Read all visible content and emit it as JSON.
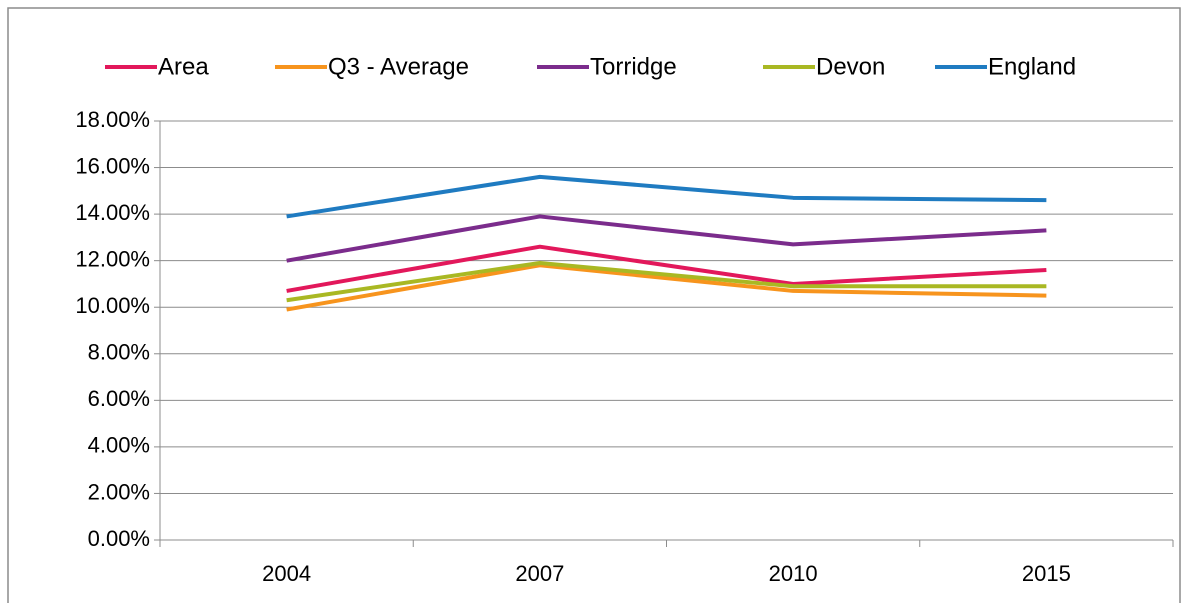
{
  "chart_data": {
    "type": "line",
    "categories": [
      "2004",
      "2007",
      "2010",
      "2015"
    ],
    "series": [
      {
        "name": "Area",
        "color": "#e2185b",
        "values": [
          10.7,
          12.6,
          11.0,
          11.6
        ]
      },
      {
        "name": "Q3 - Average",
        "color": "#f7941d",
        "values": [
          9.9,
          11.8,
          10.7,
          10.5
        ]
      },
      {
        "name": "Torridge",
        "color": "#7b2c8c",
        "values": [
          12.0,
          13.9,
          12.7,
          13.3
        ]
      },
      {
        "name": "Devon",
        "color": "#a9b823",
        "values": [
          10.3,
          11.9,
          10.9,
          10.9
        ]
      },
      {
        "name": "England",
        "color": "#1f7bc1",
        "values": [
          13.9,
          15.6,
          14.7,
          14.6
        ]
      }
    ],
    "ylim": [
      0,
      18
    ],
    "yticks": [
      {
        "value": 0,
        "label": "0.00%"
      },
      {
        "value": 2,
        "label": "2.00%"
      },
      {
        "value": 4,
        "label": "4.00%"
      },
      {
        "value": 6,
        "label": "6.00%"
      },
      {
        "value": 8,
        "label": "8.00%"
      },
      {
        "value": 10,
        "label": "10.00%"
      },
      {
        "value": 12,
        "label": "12.00%"
      },
      {
        "value": 14,
        "label": "14.00%"
      },
      {
        "value": 16,
        "label": "16.00%"
      },
      {
        "value": 18,
        "label": "18.00%"
      }
    ],
    "grid": true,
    "legend": "top"
  }
}
